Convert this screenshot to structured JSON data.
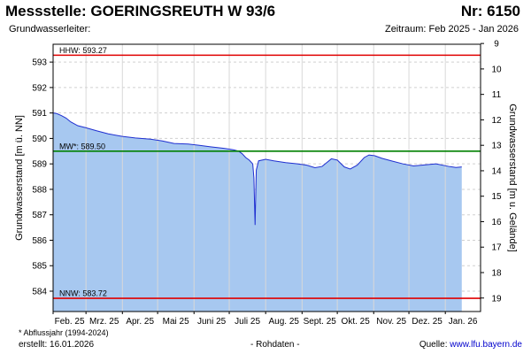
{
  "header": {
    "title": "Messstelle: GOERINGSREUTH W 93/6",
    "number": "Nr: 6150",
    "aquifer": "Grundwasserleiter:",
    "period": "Zeitraum: Feb 2025 - Jan 2026"
  },
  "footer": {
    "footnote": "* Abflussjahr (1994-2024)",
    "created": "erstellt:  16.01.2026",
    "rawdata": "- Rohdaten -",
    "source_label": "Quelle: ",
    "source_link": "www.lfu.bayern.de"
  },
  "colors": {
    "fill": "#a7c8f0",
    "line": "#1f2fd0",
    "hhw": "#e00000",
    "nnw": "#e00000",
    "mw": "#008000"
  },
  "chart_data": {
    "type": "area",
    "title": "Messstelle: GOERINGSREUTH W 93/6",
    "ylabel": "Grundwasserstand [m ü. NN]",
    "y2label": "Grundwasserstand [m u. Gelände]",
    "ylim": [
      583.2,
      593.7
    ],
    "yticks": [
      584,
      585,
      586,
      587,
      588,
      589,
      590,
      591,
      592,
      593
    ],
    "y2lim": [
      19.53,
      9.03
    ],
    "y2ticks": [
      9,
      10,
      11,
      12,
      13,
      14,
      15,
      16,
      17,
      18,
      19
    ],
    "xlim": [
      "2025-02-01",
      "2026-01-31"
    ],
    "xticks": [
      "Feb. 25",
      "Mrz. 25",
      "Apr. 25",
      "Mai 25",
      "Juni 25",
      "Juli 25",
      "Aug. 25",
      "Sept. 25",
      "Okt. 25",
      "Nov. 25",
      "Dez. 25",
      "Jan. 26"
    ],
    "grid": true,
    "reference_lines": [
      {
        "label": "HHW: 593.27",
        "value": 593.27,
        "color": "#e00000"
      },
      {
        "label": "MW*: 589.50",
        "value": 589.5,
        "color": "#008000"
      },
      {
        "label": "NNW: 583.72",
        "value": 583.72,
        "color": "#e00000"
      }
    ],
    "series": [
      {
        "x": [
          "2025-02-01",
          "2025-02-04",
          "2025-02-08",
          "2025-02-12",
          "2025-02-16",
          "2025-02-22",
          "2025-03-01",
          "2025-03-10",
          "2025-03-20",
          "2025-04-01",
          "2025-04-12",
          "2025-04-25",
          "2025-05-05",
          "2025-05-15",
          "2025-05-27",
          "2025-06-05",
          "2025-06-15",
          "2025-06-25",
          "2025-07-01",
          "2025-07-05",
          "2025-07-09",
          "2025-07-12",
          "2025-07-15",
          "2025-07-18",
          "2025-07-21",
          "2025-07-22",
          "2025-07-23",
          "2025-07-24",
          "2025-07-26",
          "2025-08-01",
          "2025-08-08",
          "2025-08-18",
          "2025-08-28",
          "2025-09-05",
          "2025-09-12",
          "2025-09-18",
          "2025-09-22",
          "2025-09-26",
          "2025-10-01",
          "2025-10-07",
          "2025-10-12",
          "2025-10-18",
          "2025-10-24",
          "2025-10-28",
          "2025-11-02",
          "2025-11-08",
          "2025-11-16",
          "2025-11-26",
          "2025-12-05",
          "2025-12-14",
          "2025-12-24",
          "2026-01-04",
          "2026-01-10",
          "2026-01-15"
        ],
        "y": [
          591.0,
          590.98,
          590.9,
          590.8,
          590.65,
          590.5,
          590.42,
          590.3,
          590.18,
          590.08,
          590.02,
          589.97,
          589.9,
          589.8,
          589.78,
          589.73,
          589.67,
          589.62,
          589.58,
          589.55,
          589.5,
          589.4,
          589.25,
          589.15,
          589.0,
          588.45,
          586.6,
          588.75,
          589.12,
          589.18,
          589.12,
          589.05,
          589.0,
          588.95,
          588.85,
          588.9,
          589.05,
          589.2,
          589.15,
          588.88,
          588.8,
          588.95,
          589.25,
          589.35,
          589.32,
          589.22,
          589.12,
          589.0,
          588.92,
          588.96,
          589.0,
          588.9,
          588.86,
          588.88
        ]
      }
    ]
  }
}
